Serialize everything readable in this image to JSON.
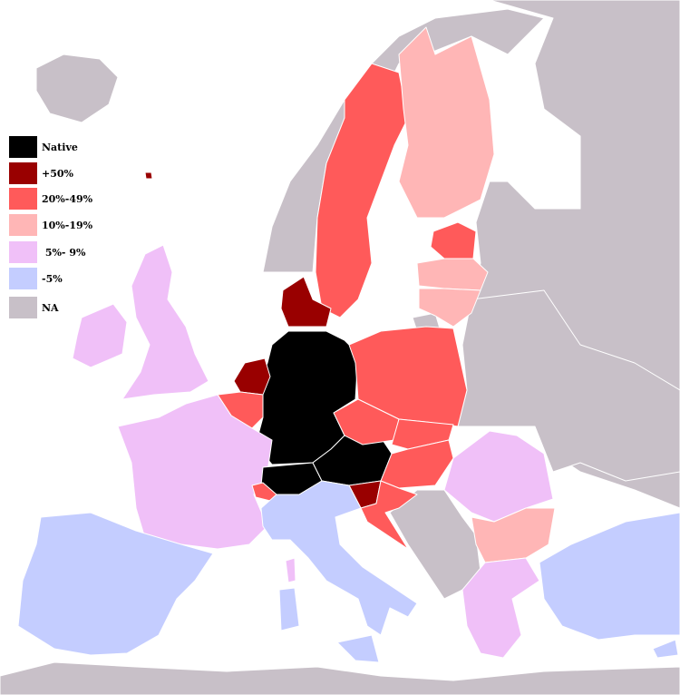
{
  "map": {
    "sea_color": "#ffffff",
    "legend": [
      {
        "key": "native",
        "label": "Native",
        "color": "#000000"
      },
      {
        "key": "p50",
        "label": "+50%",
        "color": "#990000"
      },
      {
        "key": "p20",
        "label": "20%-49%",
        "color": "#ff5a5a"
      },
      {
        "key": "p10",
        "label": "10%-19%",
        "color": "#ffb6b6"
      },
      {
        "key": "p5",
        "label": " 5%- 9%",
        "color": "#f0c0f8"
      },
      {
        "key": "m5",
        "label": "-5%",
        "color": "#c4cdff"
      },
      {
        "key": "na",
        "label": "NA",
        "color": "#c8c0c8"
      }
    ]
  }
}
